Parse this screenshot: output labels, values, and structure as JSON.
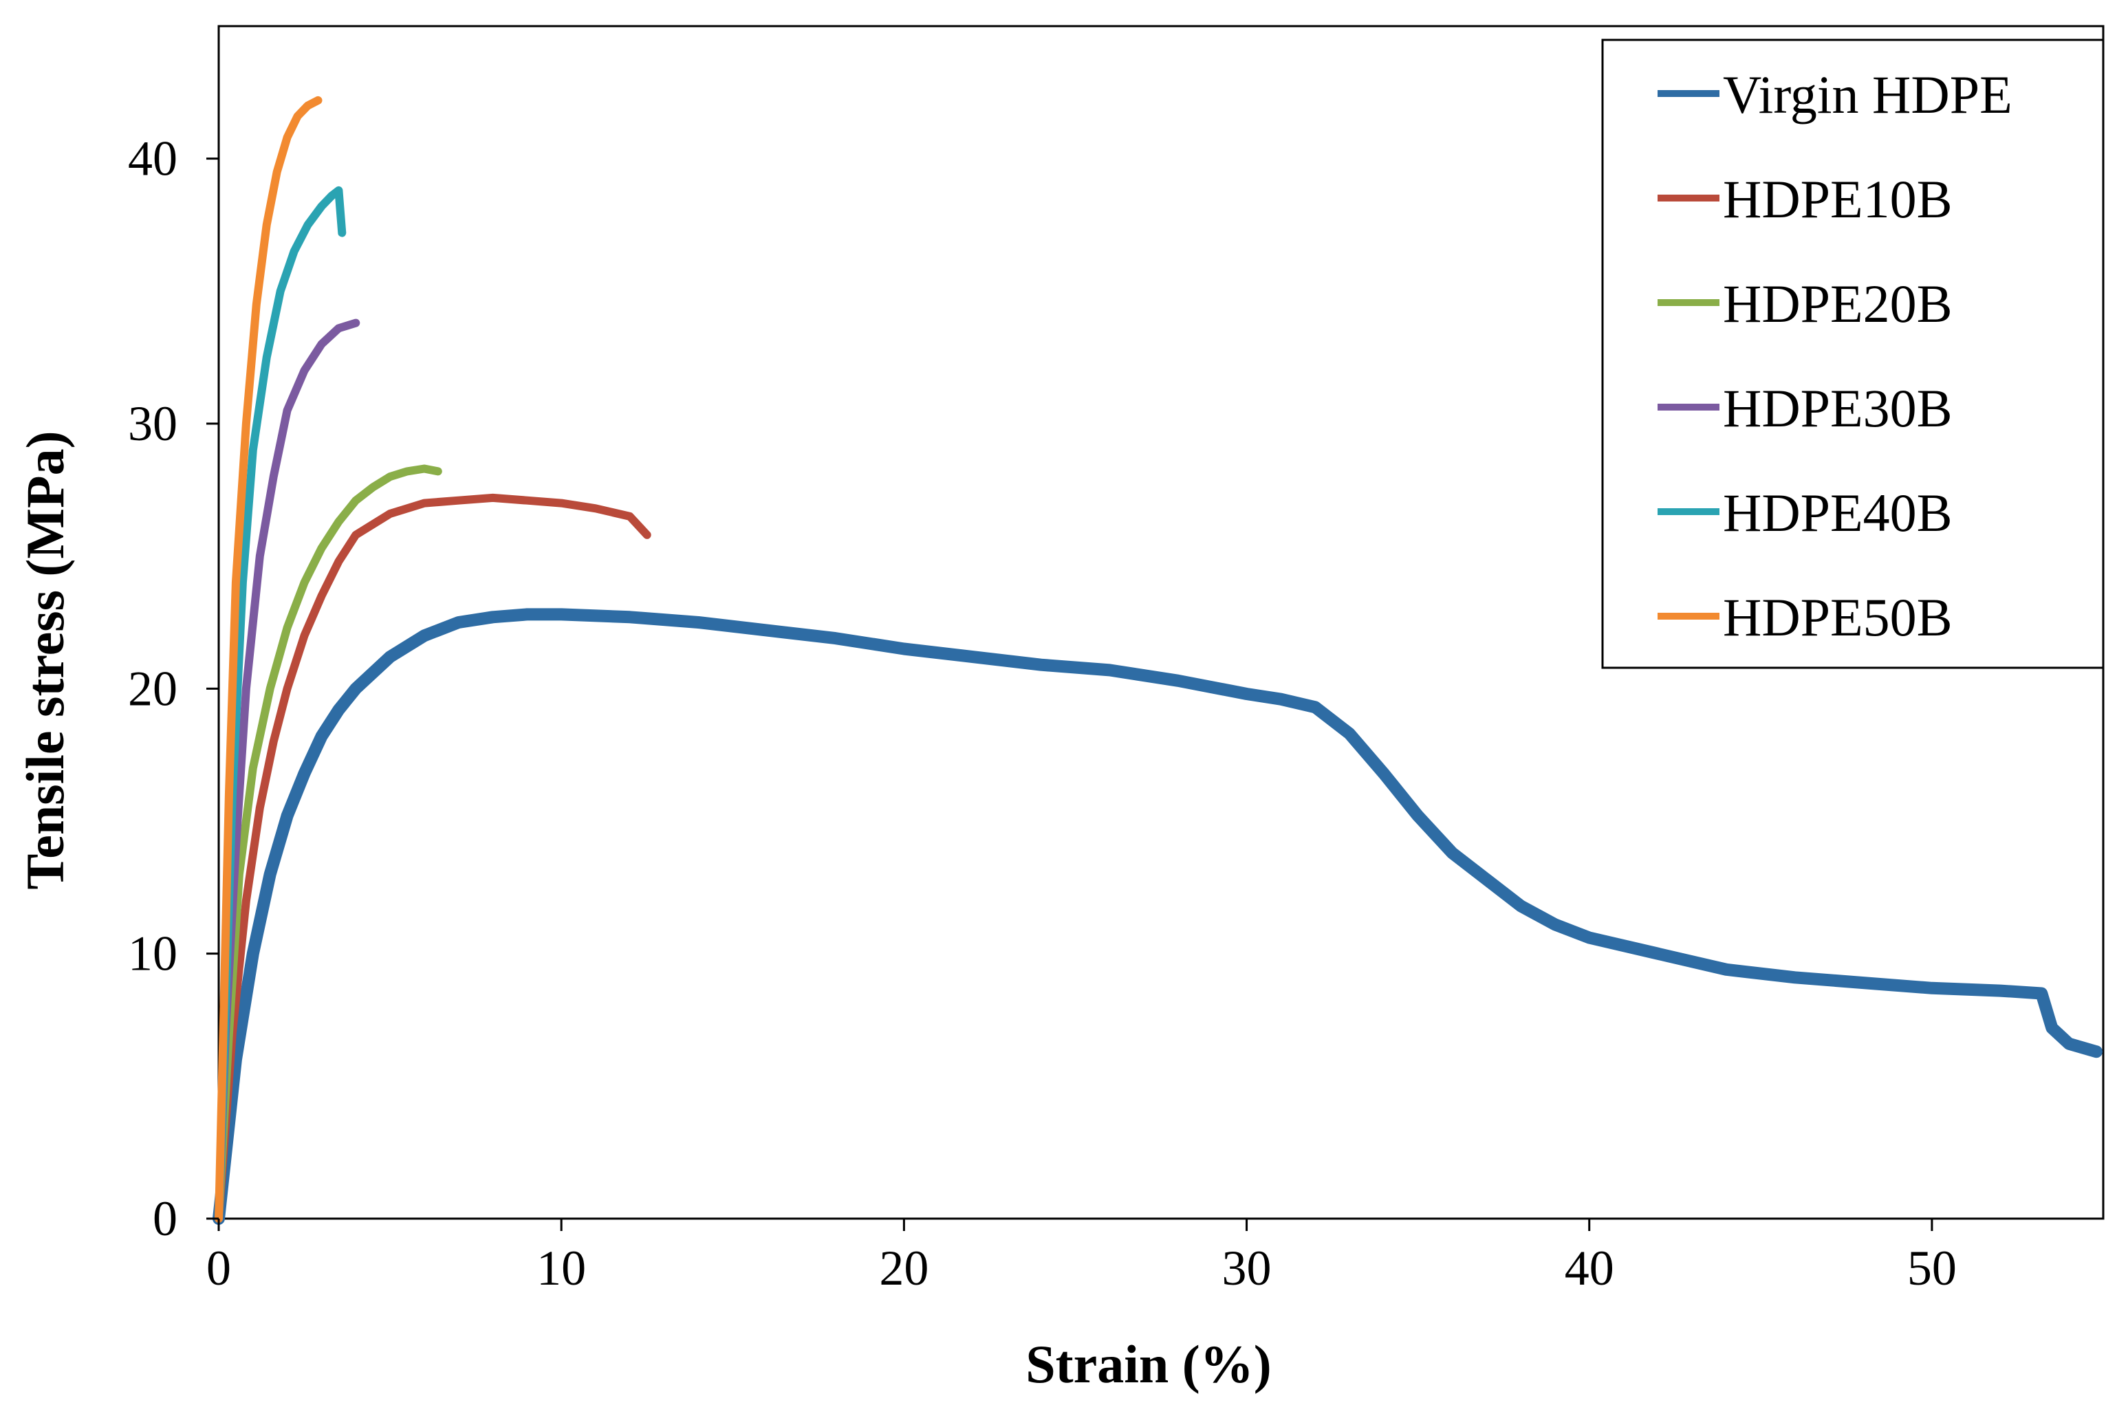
{
  "chart_data": {
    "type": "line",
    "title": "",
    "xlabel": "Strain (%)",
    "ylabel": "Tensile stress (MPa)",
    "xlim": [
      0,
      55
    ],
    "ylim": [
      0,
      45
    ],
    "xticks": [
      0,
      10,
      20,
      30,
      40,
      50
    ],
    "yticks": [
      0,
      10,
      20,
      30,
      40
    ],
    "xtick_labels": [
      "0",
      "10",
      "20",
      "30",
      "40",
      "50"
    ],
    "ytick_labels": [
      "0",
      "10",
      "20",
      "30",
      "40"
    ],
    "grid": false,
    "legend_position": "top-right",
    "series": [
      {
        "name": "Virgin HDPE",
        "color": "#2e6ca4",
        "x": [
          0,
          0.5,
          1,
          1.5,
          2,
          2.5,
          3,
          3.5,
          4,
          5,
          6,
          7,
          8,
          9,
          10,
          12,
          14,
          16,
          18,
          20,
          22,
          24,
          26,
          28,
          30,
          31,
          32,
          33,
          34,
          35,
          36,
          37,
          38,
          39,
          40,
          42,
          44,
          46,
          48,
          50,
          52,
          53.2,
          53.5,
          54,
          54.8
        ],
        "y": [
          0,
          6,
          10,
          13,
          15.2,
          16.8,
          18.2,
          19.2,
          20.0,
          21.2,
          22.0,
          22.5,
          22.7,
          22.8,
          22.8,
          22.7,
          22.5,
          22.2,
          21.9,
          21.5,
          21.2,
          20.9,
          20.7,
          20.3,
          19.8,
          19.6,
          19.3,
          18.3,
          16.8,
          15.2,
          13.8,
          12.8,
          11.8,
          11.1,
          10.6,
          10.0,
          9.4,
          9.1,
          8.9,
          8.7,
          8.6,
          8.5,
          7.2,
          6.6,
          6.3
        ]
      },
      {
        "name": "HDPE10B",
        "color": "#b94a3a",
        "x": [
          0,
          0.4,
          0.8,
          1.2,
          1.6,
          2,
          2.5,
          3,
          3.5,
          4,
          5,
          6,
          7,
          8,
          9,
          10,
          11,
          12,
          12.5
        ],
        "y": [
          0,
          7,
          12,
          15.5,
          18,
          20,
          22,
          23.5,
          24.8,
          25.8,
          26.6,
          27.0,
          27.1,
          27.2,
          27.1,
          27.0,
          26.8,
          26.5,
          25.8
        ]
      },
      {
        "name": "HDPE20B",
        "color": "#8aae48",
        "x": [
          0,
          0.3,
          0.6,
          1,
          1.5,
          2,
          2.5,
          3,
          3.5,
          4,
          4.5,
          5,
          5.5,
          6,
          6.4
        ],
        "y": [
          0,
          7,
          13,
          17,
          20,
          22.3,
          24,
          25.3,
          26.3,
          27.1,
          27.6,
          28.0,
          28.2,
          28.3,
          28.2
        ]
      },
      {
        "name": "HDPE30B",
        "color": "#7b5aa0",
        "x": [
          0,
          0.2,
          0.5,
          0.8,
          1.2,
          1.6,
          2,
          2.5,
          3,
          3.5,
          4
        ],
        "y": [
          0,
          7,
          14,
          20,
          25,
          28,
          30.5,
          32,
          33,
          33.6,
          33.8
        ]
      },
      {
        "name": "HDPE40B",
        "color": "#2aa3b2",
        "x": [
          0,
          0.2,
          0.4,
          0.7,
          1,
          1.4,
          1.8,
          2.2,
          2.6,
          3,
          3.3,
          3.5,
          3.6
        ],
        "y": [
          0,
          8,
          16,
          24,
          29,
          32.5,
          35,
          36.5,
          37.5,
          38.2,
          38.6,
          38.8,
          37.2
        ]
      },
      {
        "name": "HDPE50B",
        "color": "#f28a30",
        "x": [
          0,
          0.15,
          0.3,
          0.5,
          0.8,
          1.1,
          1.4,
          1.7,
          2,
          2.3,
          2.6,
          2.9
        ],
        "y": [
          0,
          8,
          16,
          24,
          30,
          34.5,
          37.5,
          39.5,
          40.8,
          41.6,
          42.0,
          42.2
        ]
      }
    ]
  }
}
